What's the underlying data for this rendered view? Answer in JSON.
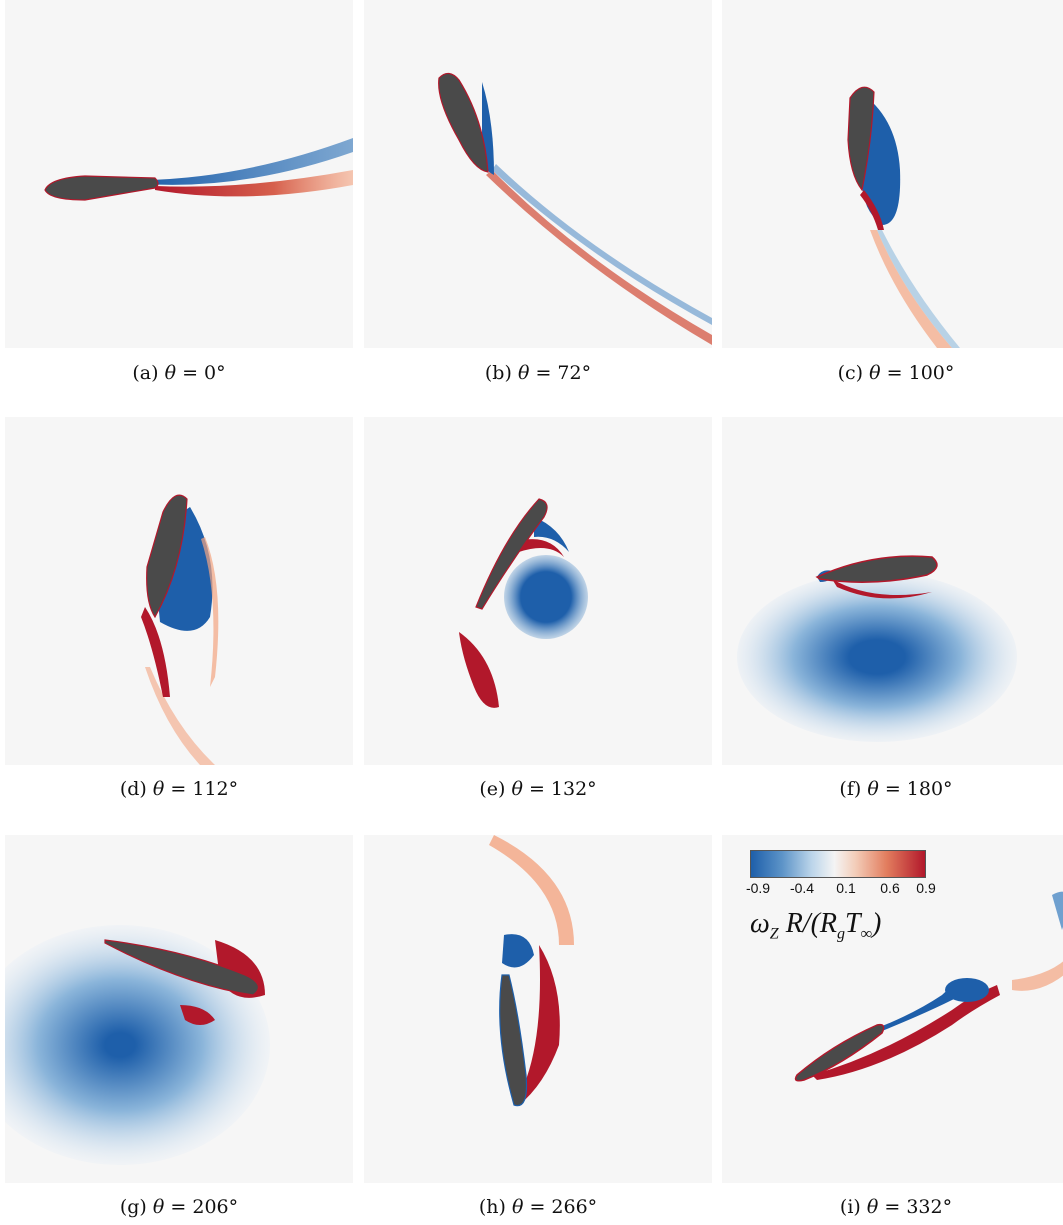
{
  "figure": {
    "panels": [
      {
        "id": "a",
        "caption_prefix": "(a)",
        "theta_symbol": "θ",
        "equals": "=",
        "angle": "0°"
      },
      {
        "id": "b",
        "caption_prefix": "(b)",
        "theta_symbol": "θ",
        "equals": "=",
        "angle": "72°"
      },
      {
        "id": "c",
        "caption_prefix": "(c)",
        "theta_symbol": "θ",
        "equals": "=",
        "angle": "100°"
      },
      {
        "id": "d",
        "caption_prefix": "(d)",
        "theta_symbol": "θ",
        "equals": "=",
        "angle": "112°"
      },
      {
        "id": "e",
        "caption_prefix": "(e)",
        "theta_symbol": "θ",
        "equals": "=",
        "angle": "132°"
      },
      {
        "id": "f",
        "caption_prefix": "(f)",
        "theta_symbol": "θ",
        "equals": "=",
        "angle": "180°"
      },
      {
        "id": "g",
        "caption_prefix": "(g)",
        "theta_symbol": "θ",
        "equals": "=",
        "angle": "206°"
      },
      {
        "id": "h",
        "caption_prefix": "(h)",
        "theta_symbol": "θ",
        "equals": "=",
        "angle": "266°"
      },
      {
        "id": "i",
        "caption_prefix": "(i)",
        "theta_symbol": "θ",
        "equals": "=",
        "angle": "332°"
      }
    ],
    "colorbar": {
      "ticks": [
        "-0.9",
        "-0.4",
        "0.1",
        "0.6",
        "0.9"
      ],
      "label_omega": "ω",
      "label_sub_z": "Z",
      "label_mid": " R/(R",
      "label_sub_g": "g",
      "label_T": "T",
      "label_sub_inf": "∞",
      "label_close": ")",
      "colors": {
        "negative": "#1e5faa",
        "neutral": "#f4f4f4",
        "positive": "#b2182b",
        "airfoil": "#4a4a4a"
      }
    }
  }
}
